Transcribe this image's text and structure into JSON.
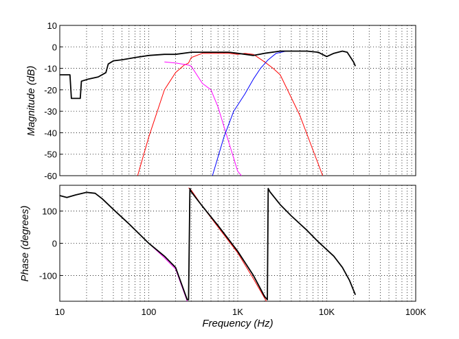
{
  "chart_data": [
    {
      "type": "line",
      "ylabel": "Magnitude (dB)",
      "xscale": "log",
      "xlim": [
        10,
        100000
      ],
      "ylim": [
        -60,
        10
      ],
      "yticks": [
        "10",
        "0",
        "-10",
        "-20",
        "-30",
        "-40",
        "-50",
        "-60"
      ],
      "grid": true,
      "series": [
        {
          "color": "#000000",
          "x": [
            10,
            13,
            13.5,
            17,
            17.5,
            21,
            27,
            33,
            35,
            40,
            50,
            70,
            100,
            150,
            200,
            300,
            400,
            600,
            800,
            1000,
            1500,
            2000,
            3000,
            4000,
            6000,
            8000,
            10000,
            12000,
            15000,
            17000,
            20000,
            21000
          ],
          "y": [
            -13,
            -13,
            -24,
            -24,
            -16,
            -15,
            -14,
            -12,
            -8,
            -6.5,
            -6,
            -5,
            -4,
            -3.5,
            -3.5,
            -2.5,
            -2.5,
            -2.5,
            -2.5,
            -3,
            -4,
            -3,
            -2,
            -2,
            -2,
            -2.5,
            -4.5,
            -3,
            -2,
            -2.5,
            -7,
            -9
          ]
        },
        {
          "color": "#ff0000",
          "x": [
            75,
            100,
            150,
            200,
            250,
            280,
            300,
            400,
            600,
            800,
            1000,
            1200,
            1500,
            2000,
            2500,
            3000,
            5000,
            7000,
            9000
          ],
          "y": [
            -60,
            -42,
            -20,
            -12,
            -8.5,
            -7.5,
            -5,
            -3,
            -3,
            -3,
            -3.5,
            -3,
            -3.5,
            -7,
            -10,
            -13,
            -32,
            -48,
            -60
          ]
        },
        {
          "color": "#ff00ff",
          "x": [
            150,
            200,
            280,
            300,
            400,
            500,
            600,
            800,
            1000,
            1100
          ],
          "y": [
            -7,
            -7.5,
            -8.5,
            -9,
            -17,
            -20,
            -28,
            -45,
            -58,
            -60
          ]
        },
        {
          "color": "#0000ff",
          "x": [
            520,
            700,
            900,
            1200,
            1500,
            1800,
            2200,
            2700,
            3500
          ],
          "y": [
            -60,
            -42,
            -30,
            -22,
            -15,
            -10,
            -6,
            -3,
            -2
          ]
        }
      ]
    },
    {
      "type": "line",
      "xlabel": "Frequency (Hz)",
      "ylabel": "Phase (degrees)",
      "xscale": "log",
      "xlim": [
        10,
        100000
      ],
      "ylim": [
        -180,
        180
      ],
      "xticks": [
        "10",
        "100",
        "1K",
        "10K",
        "100K"
      ],
      "yticks": [
        "100",
        "0",
        "-100"
      ],
      "grid": true,
      "series": [
        {
          "color": "#000000",
          "x": [
            10,
            12,
            15,
            20,
            25,
            30,
            40,
            60,
            100,
            150,
            200,
            270,
            280,
            290,
            300,
            400,
            600,
            1000,
            1500,
            2000,
            2150,
            2200,
            2300,
            3000,
            4000,
            6000,
            8000,
            12000,
            15000,
            18000,
            21000
          ],
          "y": [
            148,
            142,
            150,
            158,
            155,
            138,
            105,
            60,
            0,
            -40,
            -75,
            -175,
            -175,
            170,
            160,
            115,
            55,
            -25,
            -100,
            -165,
            -175,
            170,
            160,
            120,
            85,
            40,
            5,
            -40,
            -75,
            -115,
            -160
          ]
        },
        {
          "color": "#ff0000",
          "x": [
            280,
            300,
            400,
            600,
            1000,
            1500,
            2100
          ],
          "y": [
            172,
            165,
            115,
            50,
            -30,
            -110,
            -180
          ]
        },
        {
          "color": "#ff00ff",
          "x": [
            100,
            150,
            200,
            270
          ],
          "y": [
            0,
            -45,
            -80,
            -180
          ]
        }
      ]
    }
  ]
}
